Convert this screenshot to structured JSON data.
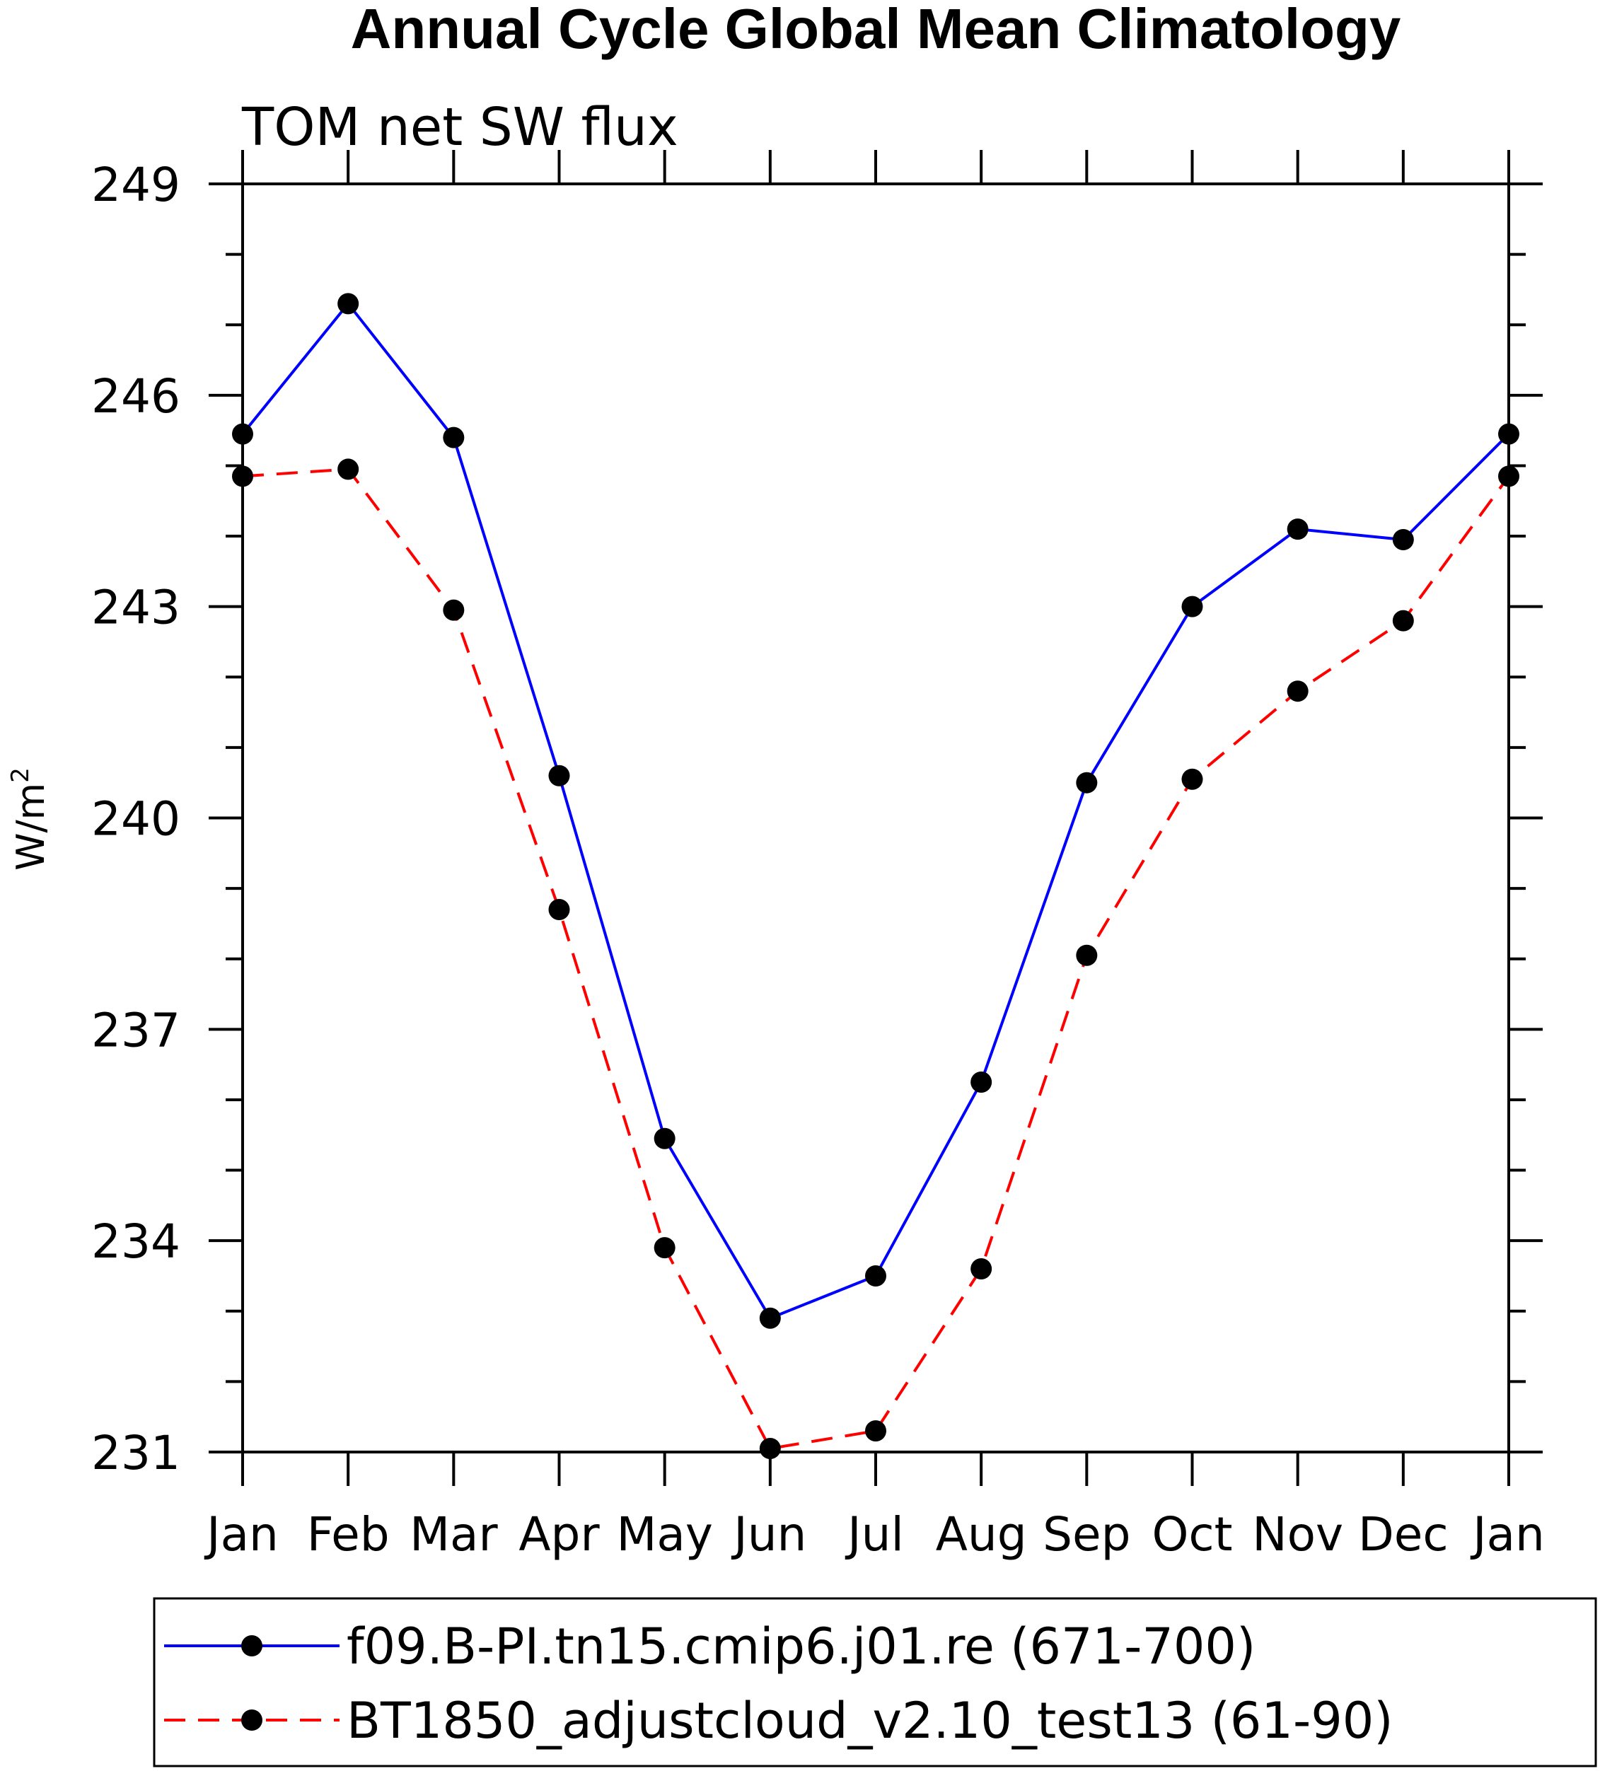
{
  "chart_data": {
    "type": "line",
    "title": "Annual Cycle Global Mean Climatology",
    "subtitle": "TOM net SW flux",
    "xlabel": "",
    "ylabel": "W/m",
    "ylabel_superscript": "2",
    "categories": [
      "Jan",
      "Feb",
      "Mar",
      "Apr",
      "May",
      "Jun",
      "Jul",
      "Aug",
      "Sep",
      "Oct",
      "Nov",
      "Dec",
      "Jan"
    ],
    "ylim": [
      231,
      249
    ],
    "yticks": [
      231,
      234,
      237,
      240,
      243,
      246,
      249
    ],
    "yticklabels": [
      "231",
      "234",
      "237",
      "240",
      "243",
      "246",
      "249"
    ],
    "series": [
      {
        "name": "f09.B-PI.tn15.cmip6.j01.re (671-700)",
        "color": "#0000ff",
        "style": "solid",
        "marker": "circle",
        "values": [
          245.45,
          247.3,
          245.4,
          240.6,
          235.45,
          232.9,
          233.5,
          236.25,
          240.5,
          243.0,
          244.1,
          243.95,
          245.45
        ]
      },
      {
        "name": "BT1850_adjustcloud_v2.10_test13 (61-90)",
        "color": "#ff0000",
        "style": "dashed",
        "marker": "circle",
        "values": [
          244.85,
          244.95,
          242.95,
          238.7,
          233.9,
          231.05,
          231.3,
          233.6,
          238.05,
          240.55,
          241.8,
          242.8,
          244.85
        ]
      }
    ],
    "legend_position": "bottom"
  }
}
